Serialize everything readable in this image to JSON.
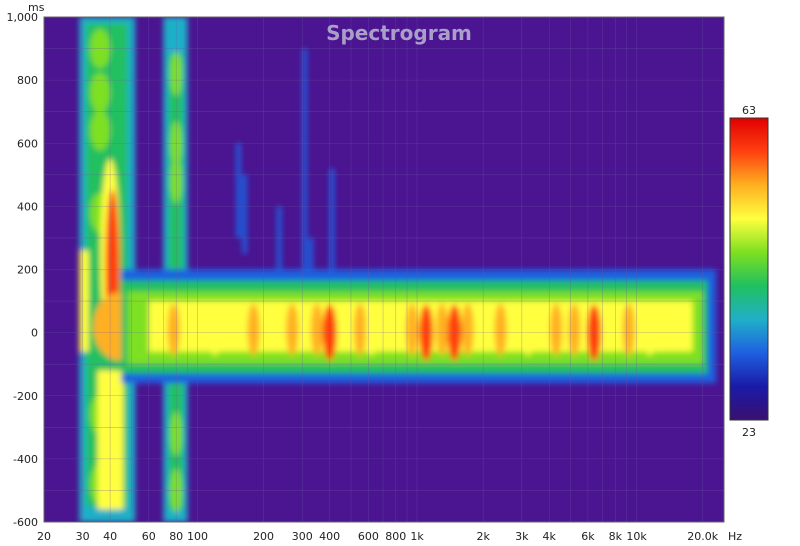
{
  "chart_data": {
    "type": "heatmap",
    "title": "Spectrogram",
    "x_unit": "Hz",
    "y_unit": "ms",
    "x_scale": "log",
    "xlim": [
      20,
      25000
    ],
    "ylim": [
      -600,
      1000
    ],
    "x_ticks": [
      {
        "value": 20,
        "label": "20"
      },
      {
        "value": 30,
        "label": "30"
      },
      {
        "value": 40,
        "label": "40"
      },
      {
        "value": 60,
        "label": "60"
      },
      {
        "value": 80,
        "label": "80"
      },
      {
        "value": 100,
        "label": "100"
      },
      {
        "value": 200,
        "label": "200"
      },
      {
        "value": 300,
        "label": "300"
      },
      {
        "value": 400,
        "label": "400"
      },
      {
        "value": 600,
        "label": "600"
      },
      {
        "value": 800,
        "label": "800"
      },
      {
        "value": 1000,
        "label": "1k"
      },
      {
        "value": 2000,
        "label": "2k"
      },
      {
        "value": 3000,
        "label": "3k"
      },
      {
        "value": 4000,
        "label": "4k"
      },
      {
        "value": 6000,
        "label": "6k"
      },
      {
        "value": 8000,
        "label": "8k"
      },
      {
        "value": 10000,
        "label": "10k"
      },
      {
        "value": 20000,
        "label": "20.0k"
      }
    ],
    "y_ticks": [
      {
        "value": 1000,
        "label": "1,000"
      },
      {
        "value": 800,
        "label": "800"
      },
      {
        "value": 600,
        "label": "600"
      },
      {
        "value": 400,
        "label": "400"
      },
      {
        "value": 200,
        "label": "200"
      },
      {
        "value": 0,
        "label": "0"
      },
      {
        "value": -200,
        "label": "-200"
      },
      {
        "value": -400,
        "label": "-400"
      },
      {
        "value": -600,
        "label": "-600"
      }
    ],
    "color_scale": {
      "min": 23,
      "max": 63,
      "min_label": "23",
      "max_label": "63",
      "colors": [
        "#3a1070",
        "#1a1aa8",
        "#1f60e0",
        "#1fb0c8",
        "#20c060",
        "#7ee020",
        "#ffff40",
        "#ffb020",
        "#ff4010",
        "#e00000"
      ]
    },
    "background_color": "#4b1490",
    "grid": true,
    "peak_regions": [
      {
        "freq_hz": 40,
        "time_ms": 250,
        "level_db": 63
      },
      {
        "freq_hz": 42,
        "time_ms": 30,
        "level_db": 62
      },
      {
        "freq_hz": 1480,
        "time_ms": 0,
        "level_db": 61
      },
      {
        "freq_hz": 6400,
        "time_ms": 0,
        "level_db": 60
      },
      {
        "freq_hz": 400,
        "time_ms": 0,
        "level_db": 59
      },
      {
        "freq_hz": 1100,
        "time_ms": 0,
        "level_db": 59
      }
    ]
  }
}
